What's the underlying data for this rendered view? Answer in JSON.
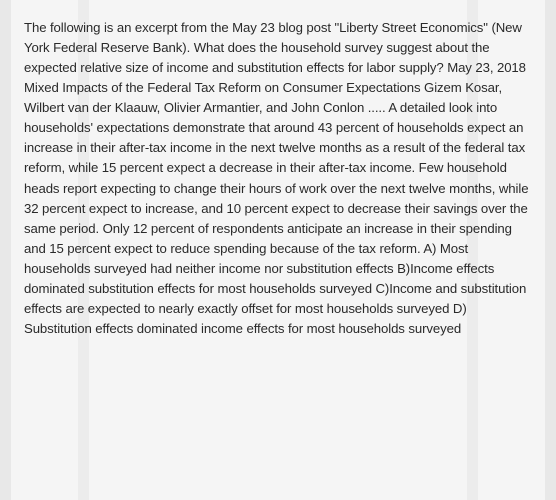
{
  "passage": {
    "text": "The following is an excerpt from the May 23 blog post \"Liberty Street Economics\" (New York Federal Reserve Bank). What does the household survey suggest about the expected relative size of income and substitution effects for labor supply? May 23, 2018 Mixed Impacts of the Federal Tax Reform on Consumer Expectations Gizem Kosar, Wilbert van der Klaauw, Olivier Armantier, and John Conlon ..... A detailed look into households' expectations demonstrate that around 43 percent of households expect an increase in their after-tax income in the next twelve months as a result of the federal tax reform, while 15 percent expect a decrease in their after-tax income. Few household heads report expecting to change their hours of work over the next twelve months, while 32 percent expect to increase, and 10 percent expect to decrease their savings over the same period. Only 12 percent of respondents anticipate an increase in their spending and 15 percent expect to reduce spending because of the tax reform. A) Most households surveyed had neither income nor substitution effects B)Income effects dominated substitution effects for most households surveyed C)Income and substitution effects are expected to nearly exactly offset for most households surveyed D) Substitution effects dominated income effects for most households surveyed",
    "font_size": 13.2,
    "line_height": 1.52,
    "text_color": "#2a2a2a",
    "background_stripes": [
      "#e8e8e8",
      "#f5f5f5",
      "#ececec"
    ]
  }
}
